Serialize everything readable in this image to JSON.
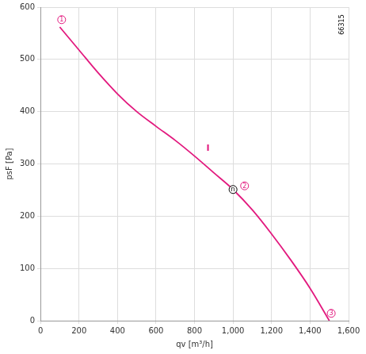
{
  "chart_data": {
    "type": "line",
    "x_label": "qv [m³/h]",
    "y_label": "psF [Pa]",
    "code_label": "66315",
    "series": [
      {
        "name": "I",
        "color": "#e2197e",
        "x": [
          100,
          200,
          300,
          400,
          500,
          600,
          700,
          800,
          900,
          1000,
          1100,
          1200,
          1300,
          1400,
          1500
        ],
        "values": [
          562,
          518,
          474,
          434,
          400,
          372,
          345,
          315,
          283,
          251,
          212,
          166,
          116,
          62,
          0
        ]
      }
    ],
    "annotations": [
      {
        "text": "1",
        "x": 110,
        "y": 576,
        "color": "#e2197e",
        "marker": "circle"
      },
      {
        "text": "n",
        "x": 1000,
        "y": 251,
        "color": "#000000",
        "marker": "circle"
      },
      {
        "text": "2",
        "x": 1060,
        "y": 258,
        "color": "#e2197e",
        "marker": "circle"
      },
      {
        "text": "3",
        "x": 1510,
        "y": 14,
        "color": "#e2197e",
        "marker": "circle"
      },
      {
        "text": "I",
        "x": 870,
        "y": 330,
        "color": "#e2197e",
        "marker": "none"
      }
    ],
    "xlim": [
      0,
      1600
    ],
    "xticks": [
      0,
      200,
      400,
      600,
      800,
      {
        "value": 1000,
        "label": "1,000"
      },
      {
        "value": 1200,
        "label": "1,200"
      },
      {
        "value": 1400,
        "label": "1,400"
      },
      {
        "value": 1600,
        "label": "1,600"
      }
    ],
    "ylim": [
      0,
      600
    ],
    "yticks": [
      0,
      100,
      200,
      300,
      400,
      500,
      600
    ],
    "grid": true
  }
}
